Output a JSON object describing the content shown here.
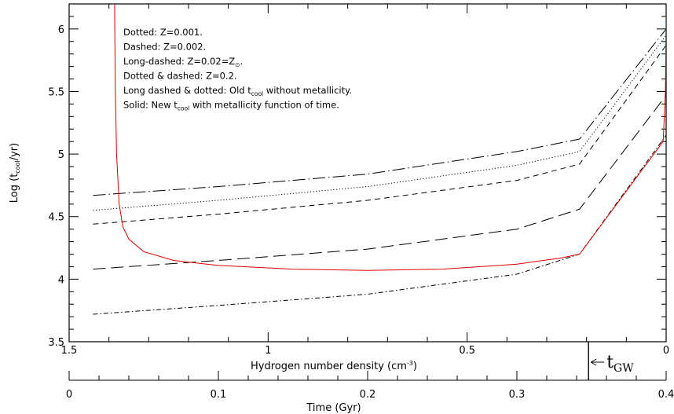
{
  "chart_data": {
    "type": "line",
    "ylabel_parts": [
      "Log (t",
      "cool",
      "/yr)"
    ],
    "bottom_axis_label": "Hydrogen number density (cm",
    "bottom_axis_label_sup": "-3",
    "bottom_axis_label_end": ")",
    "time_axis_label": "Time (Gyr)",
    "ylim": [
      3.5,
      6.2
    ],
    "xlim_density": [
      1.5,
      0
    ],
    "xlim_time": [
      0,
      0.4
    ],
    "y_ticks": [
      "3.5",
      "4",
      "4.5",
      "5",
      "5.5",
      "6"
    ],
    "y_tick_values": [
      3.5,
      4,
      4.5,
      5,
      5.5,
      6
    ],
    "density_ticks": [
      "1.5",
      "1",
      "0.5",
      "0"
    ],
    "density_tick_values": [
      1.5,
      1,
      0.5,
      0
    ],
    "time_ticks": [
      "0",
      "0.1",
      "0.2",
      "0.3",
      "0.4"
    ],
    "time_tick_values": [
      0,
      0.1,
      0.2,
      0.3,
      0.4
    ],
    "t_gw_marker": {
      "time": 0.348,
      "label_main": "t",
      "label_sub": "GW"
    },
    "legend": [
      {
        "text": "Dotted: Z=0.001."
      },
      {
        "text": "Dashed: Z=0.002."
      },
      {
        "text": "Long-dashed: Z=0.02=Z",
        "sub": "⊙",
        "text_after": "."
      },
      {
        "text": "Dotted & dashed: Z=0.2."
      },
      {
        "text": "Long dashed & dotted: Old t",
        "sub": "cool",
        "text_after": " without metallicity."
      },
      {
        "text": "Solid: New t",
        "sub": "cool",
        "text_after": " with metallicity function of time."
      }
    ],
    "series": [
      {
        "style": "long-dash-dot",
        "color": "#000000",
        "points": [
          [
            0.016,
            4.67
          ],
          [
            0.1,
            4.74
          ],
          [
            0.2,
            4.84
          ],
          [
            0.3,
            5.02
          ],
          [
            0.342,
            5.12
          ],
          [
            0.4,
            6.0
          ]
        ]
      },
      {
        "style": "dotted",
        "color": "#000000",
        "points": [
          [
            0.016,
            4.55
          ],
          [
            0.1,
            4.63
          ],
          [
            0.2,
            4.74
          ],
          [
            0.3,
            4.91
          ],
          [
            0.342,
            5.02
          ],
          [
            0.4,
            5.95
          ]
        ]
      },
      {
        "style": "dashed",
        "color": "#000000",
        "points": [
          [
            0.016,
            4.44
          ],
          [
            0.1,
            4.52
          ],
          [
            0.2,
            4.63
          ],
          [
            0.3,
            4.79
          ],
          [
            0.342,
            4.92
          ],
          [
            0.4,
            5.87
          ]
        ]
      },
      {
        "style": "long-dashed",
        "color": "#000000",
        "points": [
          [
            0.016,
            4.08
          ],
          [
            0.1,
            4.15
          ],
          [
            0.2,
            4.24
          ],
          [
            0.3,
            4.4
          ],
          [
            0.342,
            4.56
          ],
          [
            0.4,
            5.47
          ]
        ]
      },
      {
        "style": "dot-dash",
        "color": "#000000",
        "points": [
          [
            0.016,
            3.72
          ],
          [
            0.1,
            3.79
          ],
          [
            0.2,
            3.88
          ],
          [
            0.3,
            4.04
          ],
          [
            0.342,
            4.2
          ],
          [
            0.4,
            5.15
          ]
        ]
      },
      {
        "style": "solid",
        "color": "#e00000",
        "points": [
          [
            0.0305,
            6.3
          ],
          [
            0.0306,
            6.0
          ],
          [
            0.031,
            5.5
          ],
          [
            0.0318,
            5.0
          ],
          [
            0.0335,
            4.6
          ],
          [
            0.036,
            4.42
          ],
          [
            0.04,
            4.32
          ],
          [
            0.05,
            4.22
          ],
          [
            0.07,
            4.15
          ],
          [
            0.1,
            4.11
          ],
          [
            0.15,
            4.08
          ],
          [
            0.2,
            4.07
          ],
          [
            0.25,
            4.08
          ],
          [
            0.3,
            4.12
          ],
          [
            0.33,
            4.17
          ],
          [
            0.342,
            4.2
          ],
          [
            0.398,
            5.1
          ],
          [
            0.3995,
            5.5
          ],
          [
            0.4,
            6.1
          ]
        ]
      }
    ]
  }
}
